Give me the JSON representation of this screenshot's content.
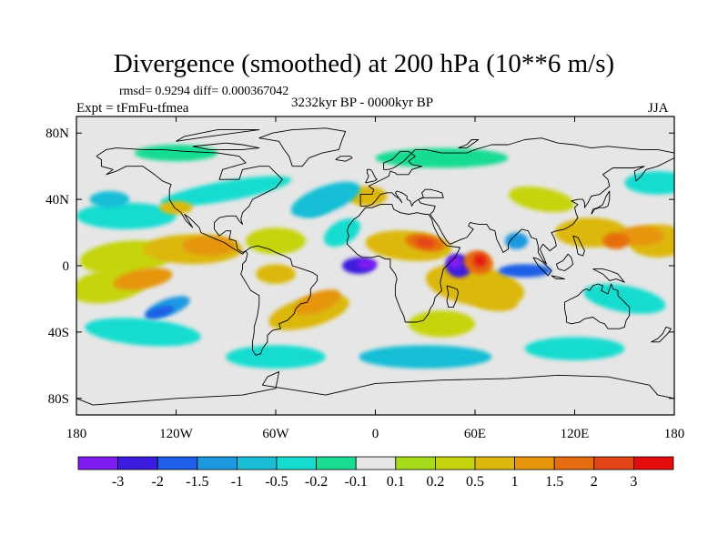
{
  "title": "Divergence (smoothed) at 200 hPa (10**6 m/s)",
  "stats": "rmsd= 0.9294 diff= 0.000367042",
  "expt": "Expt = tFmFu-tfmea",
  "period": "3232kyr BP - 0000kyr BP",
  "season": "JJA",
  "axes": {
    "x_ticks": [
      {
        "value": -180,
        "label": "180"
      },
      {
        "value": -120,
        "label": "120W"
      },
      {
        "value": -60,
        "label": "60W"
      },
      {
        "value": 0,
        "label": "0"
      },
      {
        "value": 60,
        "label": "60E"
      },
      {
        "value": 120,
        "label": "120E"
      },
      {
        "value": 180,
        "label": "180"
      }
    ],
    "y_ticks": [
      {
        "value": 80,
        "label": "80N"
      },
      {
        "value": 40,
        "label": "40N"
      },
      {
        "value": 0,
        "label": "0"
      },
      {
        "value": -40,
        "label": "40S"
      },
      {
        "value": -80,
        "label": "80S"
      }
    ]
  },
  "colorbar": {
    "colors": [
      "#7e1cf2",
      "#3c1cde",
      "#1f5ee7",
      "#1b98e0",
      "#19bed6",
      "#16dcd0",
      "#19dc92",
      "#e6e6e6",
      "#a6dc1c",
      "#c6d410",
      "#dcb80c",
      "#e6960a",
      "#e66e10",
      "#e44618",
      "#e40c0c"
    ],
    "labels": [
      "-3",
      "-2",
      "-1.5",
      "-1",
      "-0.5",
      "-0.2",
      "-0.1",
      "0.1",
      "0.2",
      "0.5",
      "1",
      "1.5",
      "2",
      "3"
    ]
  },
  "chart_data": {
    "type": "map-contour",
    "title": "Divergence (smoothed) at 200 hPa (10**6 m/s)",
    "season": "JJA",
    "levels": [
      -3,
      -2,
      -1.5,
      -1,
      -0.5,
      -0.2,
      -0.1,
      0.1,
      0.2,
      0.5,
      1,
      1.5,
      2,
      3
    ],
    "lon_range": [
      -180,
      180
    ],
    "lat_range": [
      -90,
      90
    ],
    "features": [
      {
        "name": "strong-divergence-arabian-sea",
        "lon": 62,
        "lat": 2,
        "value": 3
      },
      {
        "name": "divergence-central-africa",
        "lon": 30,
        "lat": 14,
        "value": 2
      },
      {
        "name": "divergence-sw-pacific",
        "lon": -140,
        "lat": -8,
        "value": 1.5
      },
      {
        "name": "divergence-nw-pacific",
        "lon": 160,
        "lat": 18,
        "value": 1.5
      },
      {
        "name": "divergence-central-america",
        "lon": -100,
        "lat": 12,
        "value": 1.5
      },
      {
        "name": "divergence-south-atlantic",
        "lon": -35,
        "lat": -22,
        "value": 1.5
      },
      {
        "name": "divergence-south-america",
        "lon": -60,
        "lat": -5,
        "value": 1
      },
      {
        "name": "divergence-indian-ocean",
        "lon": 70,
        "lat": -20,
        "value": 1
      },
      {
        "name": "convergence-eastern-atlantic",
        "lon": -10,
        "lat": 0,
        "value": -3
      },
      {
        "name": "convergence-east-africa",
        "lon": 50,
        "lat": 0,
        "value": -3
      },
      {
        "name": "convergence-se-pacific",
        "lon": -125,
        "lat": -25,
        "value": -2
      },
      {
        "name": "convergence-maritime-continent",
        "lon": 90,
        "lat": -3,
        "value": -2
      },
      {
        "name": "convergence-bay-of-bengal",
        "lon": 85,
        "lat": 15,
        "value": -1.5
      },
      {
        "name": "convergence-north-atlantic",
        "lon": -35,
        "lat": 35,
        "value": -1
      },
      {
        "name": "convergence-southern-ocean",
        "lon": 30,
        "lat": -55,
        "value": -1
      },
      {
        "name": "convergence-north-pacific",
        "lon": -160,
        "lat": 40,
        "value": -1
      }
    ]
  }
}
